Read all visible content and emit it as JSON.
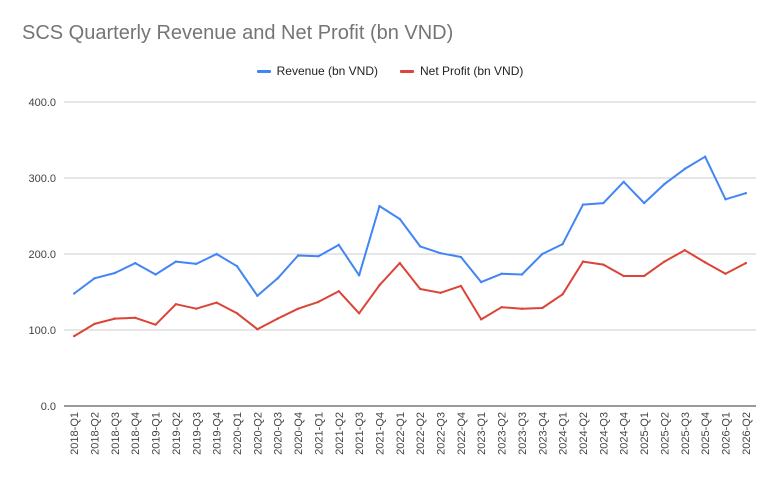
{
  "chart_data": {
    "type": "line",
    "title": "SCS Quarterly Revenue and Net Profit (bn VND)",
    "xlabel": "",
    "ylabel": "",
    "ylim": [
      0,
      400
    ],
    "yticks": [
      "0.0",
      "100.0",
      "200.0",
      "300.0",
      "400.0"
    ],
    "grid": true,
    "legend_position": "top",
    "categories": [
      "2018-Q1",
      "2018-Q2",
      "2018-Q3",
      "2018-Q4",
      "2019-Q1",
      "2019-Q2",
      "2019-Q3",
      "2019-Q4",
      "2020-Q1",
      "2020-Q2",
      "2020-Q3",
      "2020-Q4",
      "2021-Q1",
      "2021-Q2",
      "2021-Q3",
      "2021-Q4",
      "2022-Q1",
      "2022-Q2",
      "2022-Q3",
      "2022-Q4",
      "2023-Q1",
      "2023-Q2",
      "2023-Q3",
      "2023-Q4",
      "2024-Q1",
      "2024-Q2",
      "2024-Q3",
      "2024-Q4",
      "2025-Q1",
      "2025-Q2",
      "2025-Q3",
      "2025-Q4",
      "2026-Q1",
      "2026-Q2"
    ],
    "series": [
      {
        "name": "Revenue (bn VND)",
        "color": "#4285f4",
        "values": [
          148,
          168,
          175,
          188,
          173,
          190,
          187,
          200,
          184,
          145,
          168,
          198,
          197,
          212,
          172,
          263,
          246,
          210,
          201,
          196,
          163,
          174,
          173,
          200,
          213,
          265,
          267,
          295,
          267,
          292,
          312,
          328,
          272,
          280
        ]
      },
      {
        "name": "Net Profit (bn VND)",
        "color": "#db4437",
        "values": [
          92,
          108,
          115,
          116,
          107,
          134,
          128,
          136,
          122,
          101,
          115,
          128,
          137,
          151,
          122,
          159,
          188,
          154,
          149,
          158,
          114,
          130,
          128,
          129,
          147,
          190,
          186,
          171,
          171,
          190,
          205,
          189,
          174,
          188
        ]
      }
    ]
  }
}
